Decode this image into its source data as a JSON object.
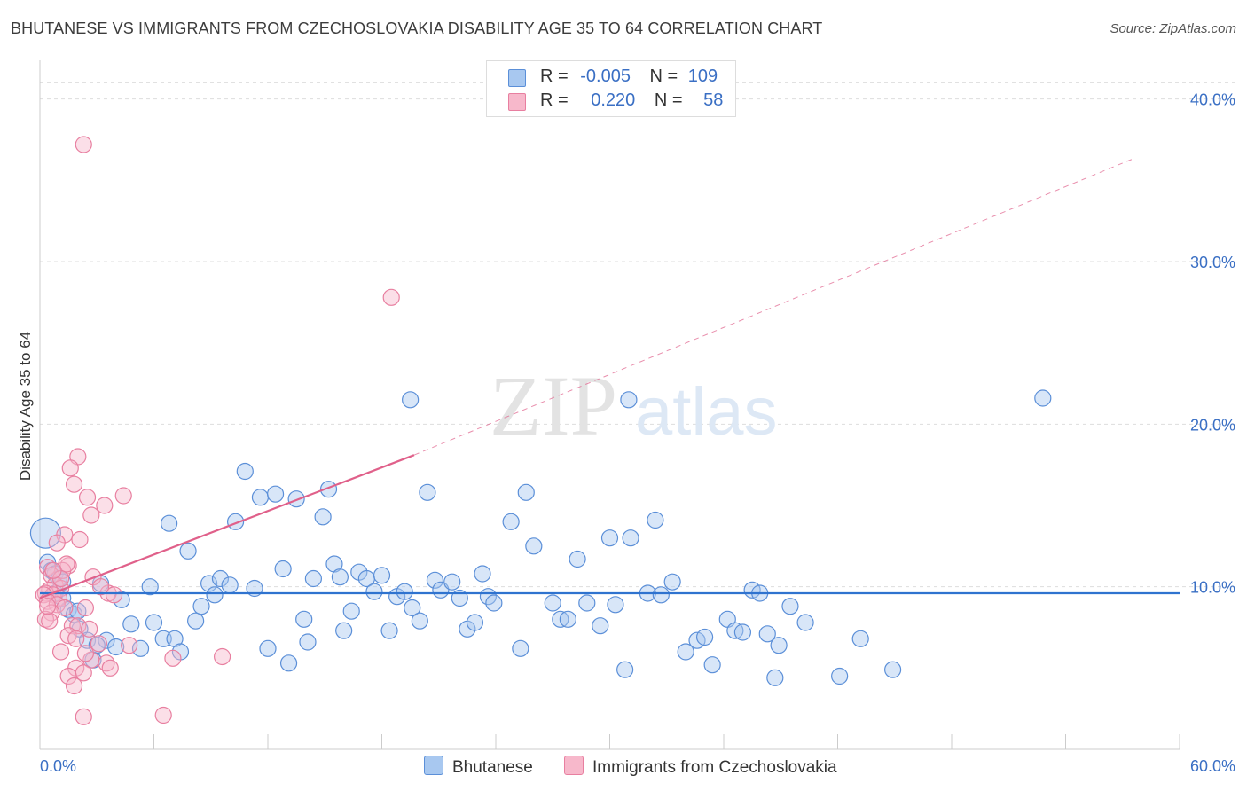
{
  "title": "BHUTANESE VS IMMIGRANTS FROM CZECHOSLOVAKIA DISABILITY AGE 35 TO 64 CORRELATION CHART",
  "source": "Source: ZipAtlas.com",
  "watermark": {
    "zip": "ZIP",
    "atlas": "atlas"
  },
  "legend": {
    "bhutanese": {
      "r_label": "R =",
      "r_value": "-0.005",
      "n_label": "N =",
      "n_value": "109"
    },
    "czech": {
      "r_label": "R =",
      "r_value": "0.220",
      "n_label": "N =",
      "n_value": "58"
    }
  },
  "colors": {
    "blue_fill": "#a8c8f0",
    "blue_stroke": "#5b8fd8",
    "blue_line": "#2f73cf",
    "pink_fill": "#f7b8cb",
    "pink_stroke": "#e87fa0",
    "pink_line": "#e0608a",
    "axis_label": "#3a6fc4",
    "grid": "#dddddd"
  },
  "chart_data": {
    "type": "scatter",
    "title": "BHUTANESE VS IMMIGRANTS FROM CZECHOSLOVAKIA DISABILITY AGE 35 TO 64 CORRELATION CHART",
    "xlabel": "",
    "ylabel": "Disability Age 35 to 64",
    "xlim": [
      0,
      60
    ],
    "ylim": [
      0,
      42
    ],
    "x_tick_labels": [
      "0.0%",
      "60.0%"
    ],
    "y_ticks": [
      10,
      20,
      30,
      40
    ],
    "y_tick_labels": [
      "10.0%",
      "20.0%",
      "30.0%",
      "40.0%"
    ],
    "grid": true,
    "series": [
      {
        "name": "Bhutanese",
        "color": "#5b8fd8",
        "trend": {
          "x0": 0,
          "y0": 9.6,
          "x1": 60,
          "y1": 9.6,
          "style": "solid"
        },
        "points": [
          [
            0.3,
            13.3
          ],
          [
            0.4,
            11.5
          ],
          [
            0.6,
            11.0
          ],
          [
            0.8,
            10.8
          ],
          [
            1.0,
            10.5
          ],
          [
            1.2,
            9.3
          ],
          [
            1.5,
            8.6
          ],
          [
            1.8,
            8.3
          ],
          [
            2.1,
            7.4
          ],
          [
            2.5,
            6.7
          ],
          [
            2.8,
            5.5
          ],
          [
            3.2,
            10.2
          ],
          [
            3.5,
            6.7
          ],
          [
            4.0,
            6.3
          ],
          [
            4.3,
            9.2
          ],
          [
            4.8,
            7.7
          ],
          [
            5.3,
            6.2
          ],
          [
            5.8,
            10.0
          ],
          [
            6.0,
            7.8
          ],
          [
            6.5,
            6.8
          ],
          [
            6.8,
            13.9
          ],
          [
            7.1,
            6.8
          ],
          [
            7.4,
            6.0
          ],
          [
            7.8,
            12.2
          ],
          [
            8.2,
            7.9
          ],
          [
            8.5,
            8.8
          ],
          [
            8.9,
            10.2
          ],
          [
            9.2,
            9.5
          ],
          [
            9.5,
            10.5
          ],
          [
            10.0,
            10.1
          ],
          [
            10.3,
            14.0
          ],
          [
            10.8,
            17.1
          ],
          [
            11.3,
            9.9
          ],
          [
            11.6,
            15.5
          ],
          [
            12.0,
            6.2
          ],
          [
            12.4,
            15.7
          ],
          [
            12.8,
            11.1
          ],
          [
            13.1,
            5.3
          ],
          [
            13.5,
            15.4
          ],
          [
            13.9,
            8.0
          ],
          [
            14.1,
            6.6
          ],
          [
            14.4,
            10.5
          ],
          [
            14.9,
            14.3
          ],
          [
            15.2,
            16.0
          ],
          [
            15.5,
            11.4
          ],
          [
            15.8,
            10.6
          ],
          [
            16.0,
            7.3
          ],
          [
            16.4,
            8.5
          ],
          [
            16.8,
            10.9
          ],
          [
            17.2,
            10.5
          ],
          [
            17.6,
            9.7
          ],
          [
            18.0,
            10.7
          ],
          [
            18.4,
            7.3
          ],
          [
            18.8,
            9.4
          ],
          [
            19.2,
            9.7
          ],
          [
            19.6,
            8.7
          ],
          [
            20.0,
            7.9
          ],
          [
            20.4,
            15.8
          ],
          [
            20.8,
            10.4
          ],
          [
            21.1,
            9.8
          ],
          [
            21.7,
            10.3
          ],
          [
            22.1,
            9.3
          ],
          [
            22.5,
            7.4
          ],
          [
            22.9,
            7.8
          ],
          [
            23.3,
            10.8
          ],
          [
            23.6,
            9.4
          ],
          [
            23.9,
            9.0
          ],
          [
            24.8,
            14.0
          ],
          [
            25.3,
            6.2
          ],
          [
            25.6,
            15.8
          ],
          [
            26.0,
            12.5
          ],
          [
            27.0,
            9.0
          ],
          [
            27.4,
            8.0
          ],
          [
            27.8,
            8.0
          ],
          [
            28.3,
            11.7
          ],
          [
            28.8,
            9.0
          ],
          [
            29.5,
            7.6
          ],
          [
            30.0,
            13.0
          ],
          [
            30.3,
            8.9
          ],
          [
            30.8,
            4.9
          ],
          [
            31.1,
            13.0
          ],
          [
            32.0,
            9.6
          ],
          [
            32.4,
            14.1
          ],
          [
            32.7,
            9.5
          ],
          [
            33.3,
            10.3
          ],
          [
            34.0,
            6.0
          ],
          [
            34.6,
            6.7
          ],
          [
            35.0,
            6.9
          ],
          [
            35.4,
            5.2
          ],
          [
            36.2,
            8.0
          ],
          [
            36.6,
            7.3
          ],
          [
            37.0,
            7.2
          ],
          [
            37.5,
            9.8
          ],
          [
            37.9,
            9.6
          ],
          [
            38.3,
            7.1
          ],
          [
            38.7,
            4.4
          ],
          [
            38.9,
            6.4
          ],
          [
            39.5,
            8.8
          ],
          [
            40.3,
            7.8
          ],
          [
            42.1,
            4.5
          ],
          [
            43.2,
            6.8
          ],
          [
            44.9,
            4.9
          ],
          [
            19.5,
            21.5
          ],
          [
            31.0,
            21.5
          ],
          [
            52.8,
            21.6
          ],
          [
            2.0,
            8.5
          ],
          [
            3.0,
            6.4
          ],
          [
            1.2,
            10.3
          ],
          [
            0.8,
            9.6
          ]
        ]
      },
      {
        "name": "Immigrants from Czechoslovakia",
        "color": "#e87fa0",
        "trend": {
          "x0": 0,
          "y0": 9.3,
          "x1": 19.7,
          "y1": 18.1,
          "dashed_to_x": 57.5,
          "dashed_to_y": 36.3,
          "style": "solid-then-dashed"
        },
        "points": [
          [
            2.3,
            37.2
          ],
          [
            18.5,
            27.8
          ],
          [
            2.0,
            18.0
          ],
          [
            1.6,
            17.3
          ],
          [
            1.8,
            16.3
          ],
          [
            2.5,
            15.5
          ],
          [
            4.4,
            15.6
          ],
          [
            3.4,
            15.0
          ],
          [
            2.7,
            14.4
          ],
          [
            1.3,
            13.2
          ],
          [
            2.1,
            12.9
          ],
          [
            0.9,
            12.7
          ],
          [
            0.4,
            11.2
          ],
          [
            1.5,
            11.3
          ],
          [
            1.2,
            11.0
          ],
          [
            1.4,
            11.4
          ],
          [
            0.6,
            10.7
          ],
          [
            2.8,
            10.6
          ],
          [
            0.8,
            10.1
          ],
          [
            1.1,
            9.9
          ],
          [
            0.5,
            9.8
          ],
          [
            0.3,
            9.6
          ],
          [
            0.7,
            9.5
          ],
          [
            1.0,
            9.3
          ],
          [
            0.2,
            9.5
          ],
          [
            0.4,
            9.1
          ],
          [
            0.9,
            8.9
          ],
          [
            1.3,
            8.7
          ],
          [
            0.6,
            8.4
          ],
          [
            2.4,
            8.7
          ],
          [
            3.6,
            9.6
          ],
          [
            0.3,
            8.0
          ],
          [
            1.7,
            7.6
          ],
          [
            0.5,
            7.9
          ],
          [
            2.0,
            7.6
          ],
          [
            2.6,
            7.4
          ],
          [
            1.5,
            7.0
          ],
          [
            3.9,
            9.5
          ],
          [
            3.1,
            6.5
          ],
          [
            4.7,
            6.4
          ],
          [
            2.7,
            5.5
          ],
          [
            3.5,
            5.3
          ],
          [
            1.9,
            5.0
          ],
          [
            2.3,
            4.7
          ],
          [
            1.5,
            4.5
          ],
          [
            3.7,
            5.0
          ],
          [
            1.8,
            3.9
          ],
          [
            2.4,
            5.9
          ],
          [
            7.0,
            5.6
          ],
          [
            9.6,
            5.7
          ],
          [
            2.3,
            2.0
          ],
          [
            6.5,
            2.1
          ],
          [
            3.2,
            10.0
          ],
          [
            1.1,
            10.5
          ],
          [
            0.7,
            11.0
          ],
          [
            1.9,
            6.8
          ],
          [
            1.1,
            6.0
          ],
          [
            0.4,
            8.8
          ]
        ]
      }
    ]
  },
  "bottom_legend": {
    "bhutanese": "Bhutanese",
    "czech": "Immigrants from Czechoslovakia"
  }
}
